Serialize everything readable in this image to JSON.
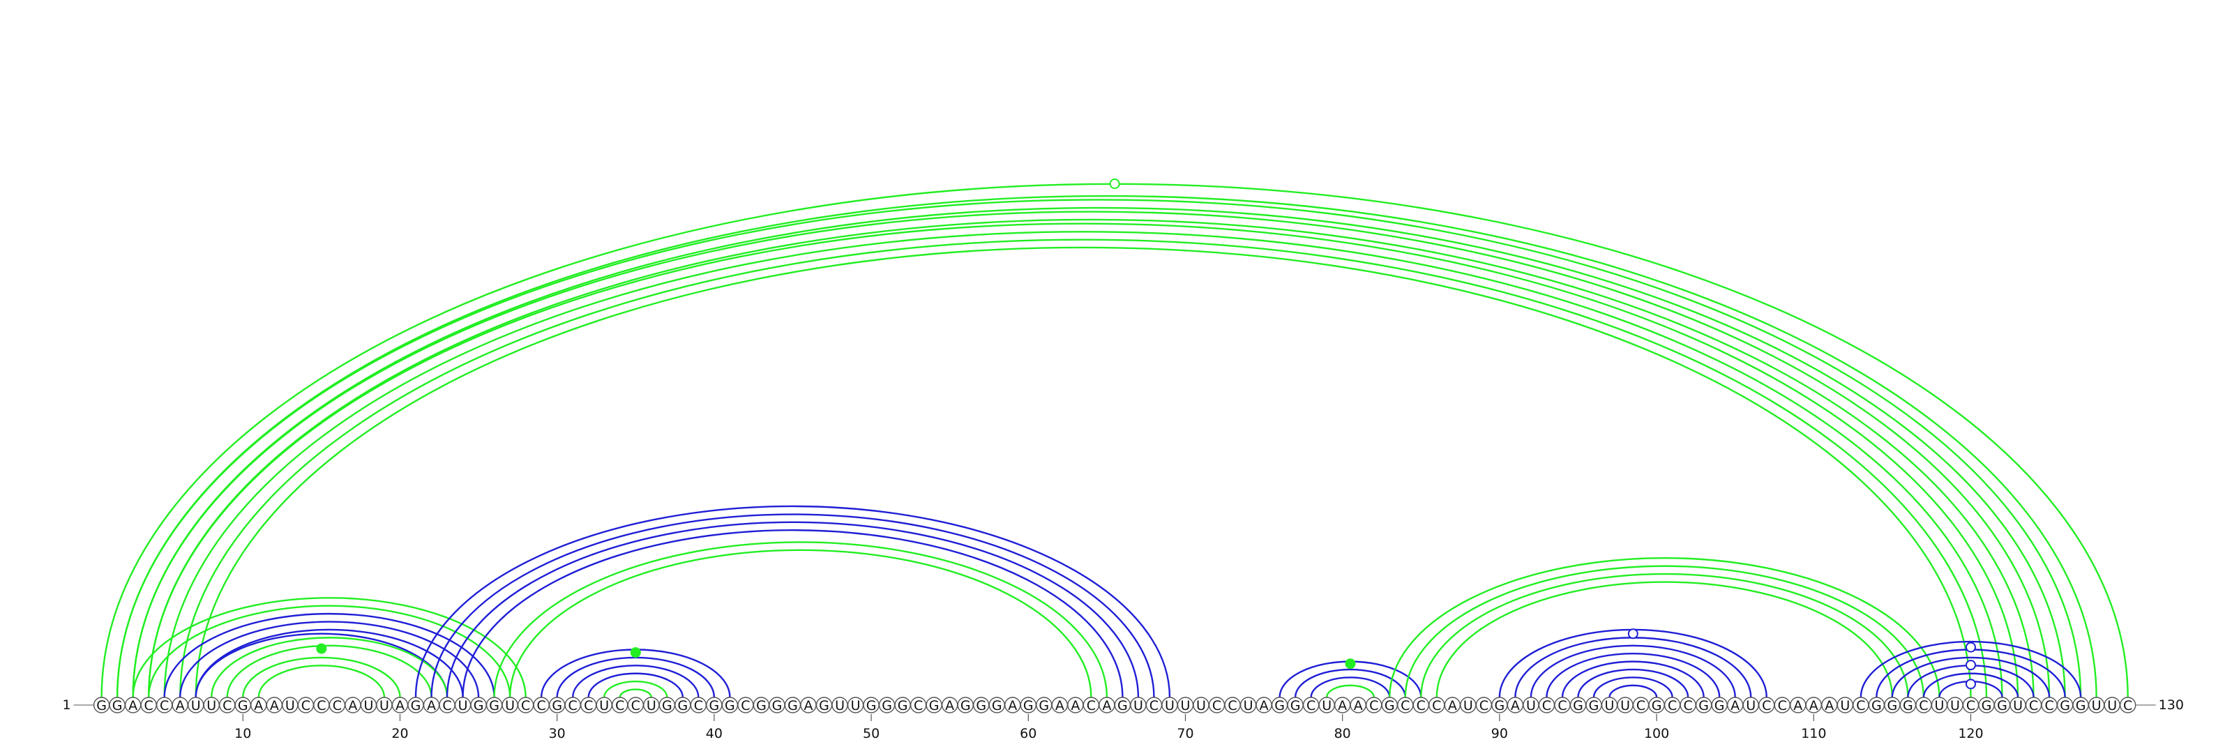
{
  "sequence": "GGACCAUUCGAAUCCCAUUAGACUGGUCCGCCUCCUGGCGGCGGGAGUUGGGCGAGGGAGGAACAGUCUUUCCUAGGCUAACGCCCAUCGAUCCGGUUCGCCGGAUCCAAAUCGGGCUUCGGUCCGGUUC",
  "start_label": "1",
  "end_label": "130",
  "ticks": [
    10,
    20,
    30,
    40,
    50,
    60,
    70,
    80,
    90,
    100,
    110,
    120
  ],
  "colors": {
    "green": "#22ee22",
    "blue": "#1f1fd6"
  },
  "chart_data": {
    "type": "arc-diagram",
    "length": 130,
    "pairs": [
      {
        "i": 1,
        "j": 130,
        "color": "green"
      },
      {
        "i": 2,
        "j": 128,
        "color": "green"
      },
      {
        "i": 2,
        "j": 127,
        "color": "green"
      },
      {
        "i": 3,
        "j": 126,
        "color": "green"
      },
      {
        "i": 3,
        "j": 125,
        "color": "green"
      },
      {
        "i": 4,
        "j": 124,
        "color": "green"
      },
      {
        "i": 4,
        "j": 123,
        "color": "green"
      },
      {
        "i": 5,
        "j": 122,
        "color": "green"
      },
      {
        "i": 6,
        "j": 121,
        "color": "green"
      },
      {
        "i": 7,
        "j": 120,
        "color": "green"
      },
      {
        "i": 3,
        "j": 28,
        "color": "green"
      },
      {
        "i": 4,
        "j": 27,
        "color": "green"
      },
      {
        "i": 5,
        "j": 26,
        "color": "blue"
      },
      {
        "i": 6,
        "j": 25,
        "color": "blue"
      },
      {
        "i": 7,
        "j": 24,
        "color": "blue"
      },
      {
        "i": 7,
        "j": 23,
        "color": "blue"
      },
      {
        "i": 8,
        "j": 23,
        "color": "green"
      },
      {
        "i": 9,
        "j": 22,
        "color": "green"
      },
      {
        "i": 10,
        "j": 20,
        "color": "green"
      },
      {
        "i": 11,
        "j": 19,
        "color": "green"
      },
      {
        "i": 21,
        "j": 69,
        "color": "blue"
      },
      {
        "i": 22,
        "j": 68,
        "color": "blue"
      },
      {
        "i": 23,
        "j": 67,
        "color": "blue"
      },
      {
        "i": 24,
        "j": 66,
        "color": "blue"
      },
      {
        "i": 26,
        "j": 65,
        "color": "green"
      },
      {
        "i": 27,
        "j": 64,
        "color": "green"
      },
      {
        "i": 29,
        "j": 41,
        "color": "blue"
      },
      {
        "i": 30,
        "j": 40,
        "color": "blue"
      },
      {
        "i": 31,
        "j": 39,
        "color": "blue"
      },
      {
        "i": 32,
        "j": 38,
        "color": "blue"
      },
      {
        "i": 33,
        "j": 37,
        "color": "green"
      },
      {
        "i": 34,
        "j": 36,
        "color": "green"
      },
      {
        "i": 76,
        "j": 85,
        "color": "blue"
      },
      {
        "i": 77,
        "j": 84,
        "color": "blue"
      },
      {
        "i": 78,
        "j": 83,
        "color": "blue"
      },
      {
        "i": 79,
        "j": 82,
        "color": "green"
      },
      {
        "i": 83,
        "j": 118,
        "color": "green"
      },
      {
        "i": 84,
        "j": 117,
        "color": "green"
      },
      {
        "i": 85,
        "j": 116,
        "color": "green"
      },
      {
        "i": 86,
        "j": 115,
        "color": "green"
      },
      {
        "i": 90,
        "j": 107,
        "color": "blue"
      },
      {
        "i": 91,
        "j": 106,
        "color": "blue"
      },
      {
        "i": 92,
        "j": 105,
        "color": "blue"
      },
      {
        "i": 93,
        "j": 104,
        "color": "blue"
      },
      {
        "i": 94,
        "j": 103,
        "color": "blue"
      },
      {
        "i": 95,
        "j": 102,
        "color": "blue"
      },
      {
        "i": 96,
        "j": 101,
        "color": "blue"
      },
      {
        "i": 97,
        "j": 100,
        "color": "blue"
      },
      {
        "i": 113,
        "j": 127,
        "color": "blue"
      },
      {
        "i": 114,
        "j": 126,
        "color": "blue"
      },
      {
        "i": 115,
        "j": 125,
        "color": "blue"
      },
      {
        "i": 116,
        "j": 124,
        "color": "blue"
      },
      {
        "i": 117,
        "j": 123,
        "color": "blue"
      },
      {
        "i": 118,
        "j": 122,
        "color": "blue"
      }
    ],
    "markers": [
      {
        "pos": 65.5,
        "height_fraction": 1.0,
        "filled": false,
        "color": "green"
      },
      {
        "pos": 15,
        "height_fraction": 0.49,
        "filled": true,
        "color": "green"
      },
      {
        "pos": 35,
        "height_fraction": 0.94,
        "filled": true,
        "color": "green"
      },
      {
        "pos": 80.5,
        "height_fraction": 0.94,
        "filled": true,
        "color": "green"
      },
      {
        "pos": 98.5,
        "height_fraction": 0.94,
        "filled": false,
        "color": "blue"
      },
      {
        "pos": 120,
        "height_fraction": 0.9,
        "filled": false,
        "color": "blue"
      },
      {
        "pos": 120,
        "height_fraction": 0.58,
        "filled": false,
        "color": "blue"
      },
      {
        "pos": 120,
        "height_fraction": 0.24,
        "filled": false,
        "color": "blue"
      }
    ]
  }
}
